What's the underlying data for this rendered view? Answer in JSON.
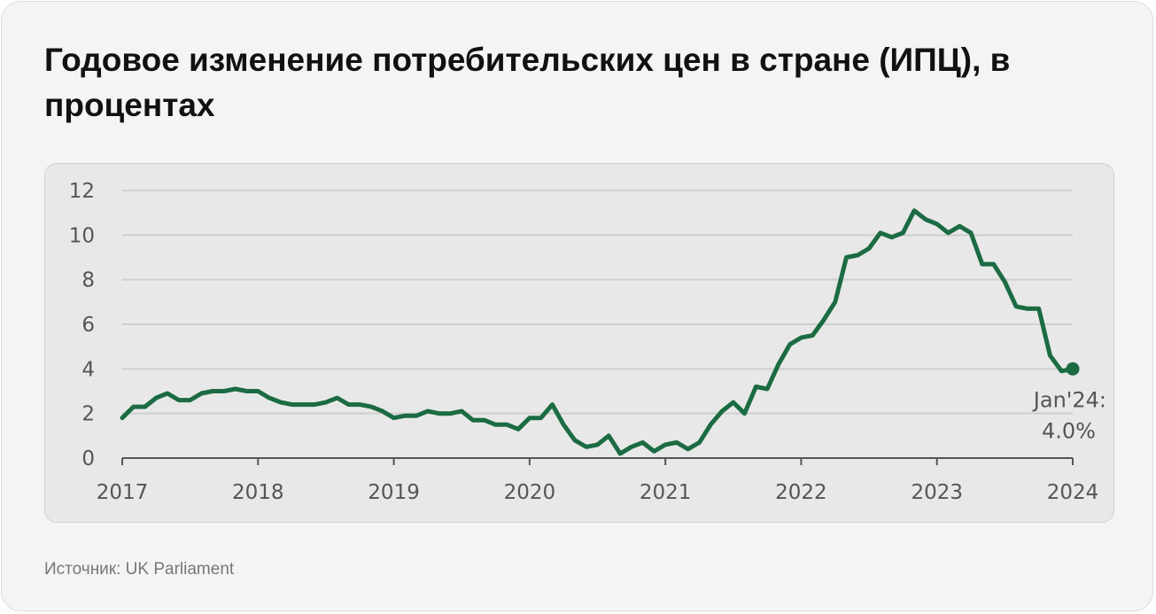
{
  "title": "Годовое изменение потребительских цен в стране (ИПЦ), в процентах",
  "source": "Источник: UK Parliament",
  "colors": {
    "line": "#1b6b43",
    "grid": "#cfcfcf",
    "axis": "#555555",
    "panel": "#e8e8e8"
  },
  "chart_data": {
    "type": "line",
    "title": "",
    "xlabel": "",
    "ylabel": "",
    "xlim": [
      2017.0,
      2024.0
    ],
    "ylim": [
      0,
      12
    ],
    "x_ticks": [
      "2017",
      "2018",
      "2019",
      "2020",
      "2021",
      "2022",
      "2023",
      "2024"
    ],
    "y_ticks": [
      "0",
      "2",
      "4",
      "6",
      "8",
      "10",
      "12"
    ],
    "grid": true,
    "series": [
      {
        "name": "",
        "x": [
          2017.0,
          2017.083,
          2017.167,
          2017.25,
          2017.333,
          2017.417,
          2017.5,
          2017.583,
          2017.667,
          2017.75,
          2017.833,
          2017.917,
          2018.0,
          2018.083,
          2018.167,
          2018.25,
          2018.333,
          2018.417,
          2018.5,
          2018.583,
          2018.667,
          2018.75,
          2018.833,
          2018.917,
          2019.0,
          2019.083,
          2019.167,
          2019.25,
          2019.333,
          2019.417,
          2019.5,
          2019.583,
          2019.667,
          2019.75,
          2019.833,
          2019.917,
          2020.0,
          2020.083,
          2020.167,
          2020.25,
          2020.333,
          2020.417,
          2020.5,
          2020.583,
          2020.667,
          2020.75,
          2020.833,
          2020.917,
          2021.0,
          2021.083,
          2021.167,
          2021.25,
          2021.333,
          2021.417,
          2021.5,
          2021.583,
          2021.667,
          2021.75,
          2021.833,
          2021.917,
          2022.0,
          2022.083,
          2022.167,
          2022.25,
          2022.333,
          2022.417,
          2022.5,
          2022.583,
          2022.667,
          2022.75,
          2022.833,
          2022.917,
          2023.0,
          2023.083,
          2023.167,
          2023.25,
          2023.333,
          2023.417,
          2023.5,
          2023.583,
          2023.667,
          2023.75,
          2023.833,
          2023.917,
          2024.0
        ],
        "values": [
          1.8,
          2.3,
          2.3,
          2.7,
          2.9,
          2.6,
          2.6,
          2.9,
          3.0,
          3.0,
          3.1,
          3.0,
          3.0,
          2.7,
          2.5,
          2.4,
          2.4,
          2.4,
          2.5,
          2.7,
          2.4,
          2.4,
          2.3,
          2.1,
          1.8,
          1.9,
          1.9,
          2.1,
          2.0,
          2.0,
          2.1,
          1.7,
          1.7,
          1.5,
          1.5,
          1.3,
          1.8,
          1.8,
          2.4,
          1.5,
          0.8,
          0.5,
          0.6,
          1.0,
          0.2,
          0.5,
          0.7,
          0.3,
          0.6,
          0.7,
          0.4,
          0.7,
          1.5,
          2.1,
          2.5,
          2.0,
          3.2,
          3.1,
          4.2,
          5.1,
          5.4,
          5.5,
          6.2,
          7.0,
          9.0,
          9.1,
          9.4,
          10.1,
          9.9,
          10.1,
          11.1,
          10.7,
          10.5,
          10.1,
          10.4,
          10.1,
          8.7,
          8.7,
          7.9,
          6.8,
          6.7,
          6.7,
          4.6,
          3.9,
          4.0
        ]
      }
    ],
    "annotation": {
      "line1": "Jan'24:",
      "line2": "4.0%"
    }
  }
}
